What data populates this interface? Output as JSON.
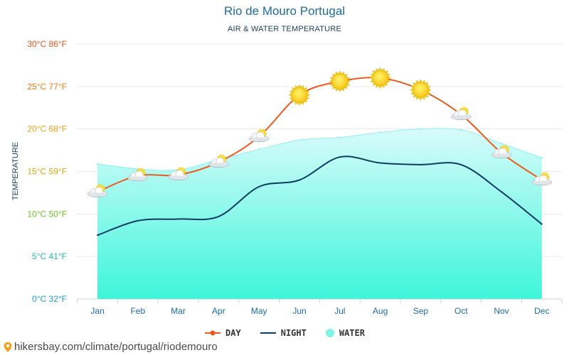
{
  "header": {
    "title": "Rio de Mouro Portugal",
    "subtitle": "AIR & WATER TEMPERATURE"
  },
  "source": {
    "text": "hikersbay.com/climate/portugal/riodemouro"
  },
  "colors": {
    "day": "#ee5a1e",
    "night": "#0e3d62",
    "water": "#7ff3e8",
    "tick_30": "#e8571a",
    "tick_25": "#ee7a12",
    "tick_20": "#eaa411",
    "tick_15": "#d4a80a",
    "tick_10": "#66c61a",
    "tick_5": "#25b8a8",
    "tick_0": "#1aa0d0"
  },
  "chart_data": {
    "type": "line",
    "title": "Rio de Mouro Portugal",
    "subtitle": "AIR & WATER TEMPERATURE",
    "xlabel": "",
    "ylabel": "TEMPERATURE",
    "ylim": [
      0,
      30
    ],
    "grid": true,
    "legend_position": "bottom-center",
    "categories": [
      "Jan",
      "Feb",
      "Mar",
      "Apr",
      "May",
      "Jun",
      "Jul",
      "Aug",
      "Sep",
      "Oct",
      "Nov",
      "Dec"
    ],
    "y_ticks": [
      {
        "value": 30,
        "label": "30°C 86°F"
      },
      {
        "value": 25,
        "label": "25°C 77°F"
      },
      {
        "value": 20,
        "label": "20°C 68°F"
      },
      {
        "value": 15,
        "label": "15°C 59°F"
      },
      {
        "value": 10,
        "label": "10°C 50°F"
      },
      {
        "value": 5,
        "label": "5°C 41°F"
      },
      {
        "value": 0,
        "label": "0°C 32°F"
      }
    ],
    "series": [
      {
        "name": "DAY",
        "kind": "line",
        "values": [
          12.6,
          14.5,
          14.6,
          16.1,
          19.1,
          24.0,
          25.6,
          26.0,
          24.6,
          21.7,
          17.2,
          14.0
        ]
      },
      {
        "name": "NIGHT",
        "kind": "line",
        "values": [
          7.5,
          9.2,
          9.4,
          9.7,
          13.2,
          14.0,
          16.7,
          16.0,
          15.8,
          15.8,
          12.6,
          8.8
        ]
      },
      {
        "name": "WATER",
        "kind": "area",
        "values": [
          15.9,
          15.3,
          15.2,
          16.4,
          17.6,
          18.7,
          19.0,
          19.6,
          20.0,
          19.9,
          18.3,
          16.6
        ]
      }
    ],
    "weather_icons": [
      "partly-cloudy",
      "partly-cloudy",
      "partly-cloudy",
      "partly-cloudy",
      "partly-cloudy",
      "sun",
      "sun",
      "sun",
      "sun",
      "partly-cloudy",
      "partly-cloudy",
      "partly-cloudy"
    ]
  }
}
